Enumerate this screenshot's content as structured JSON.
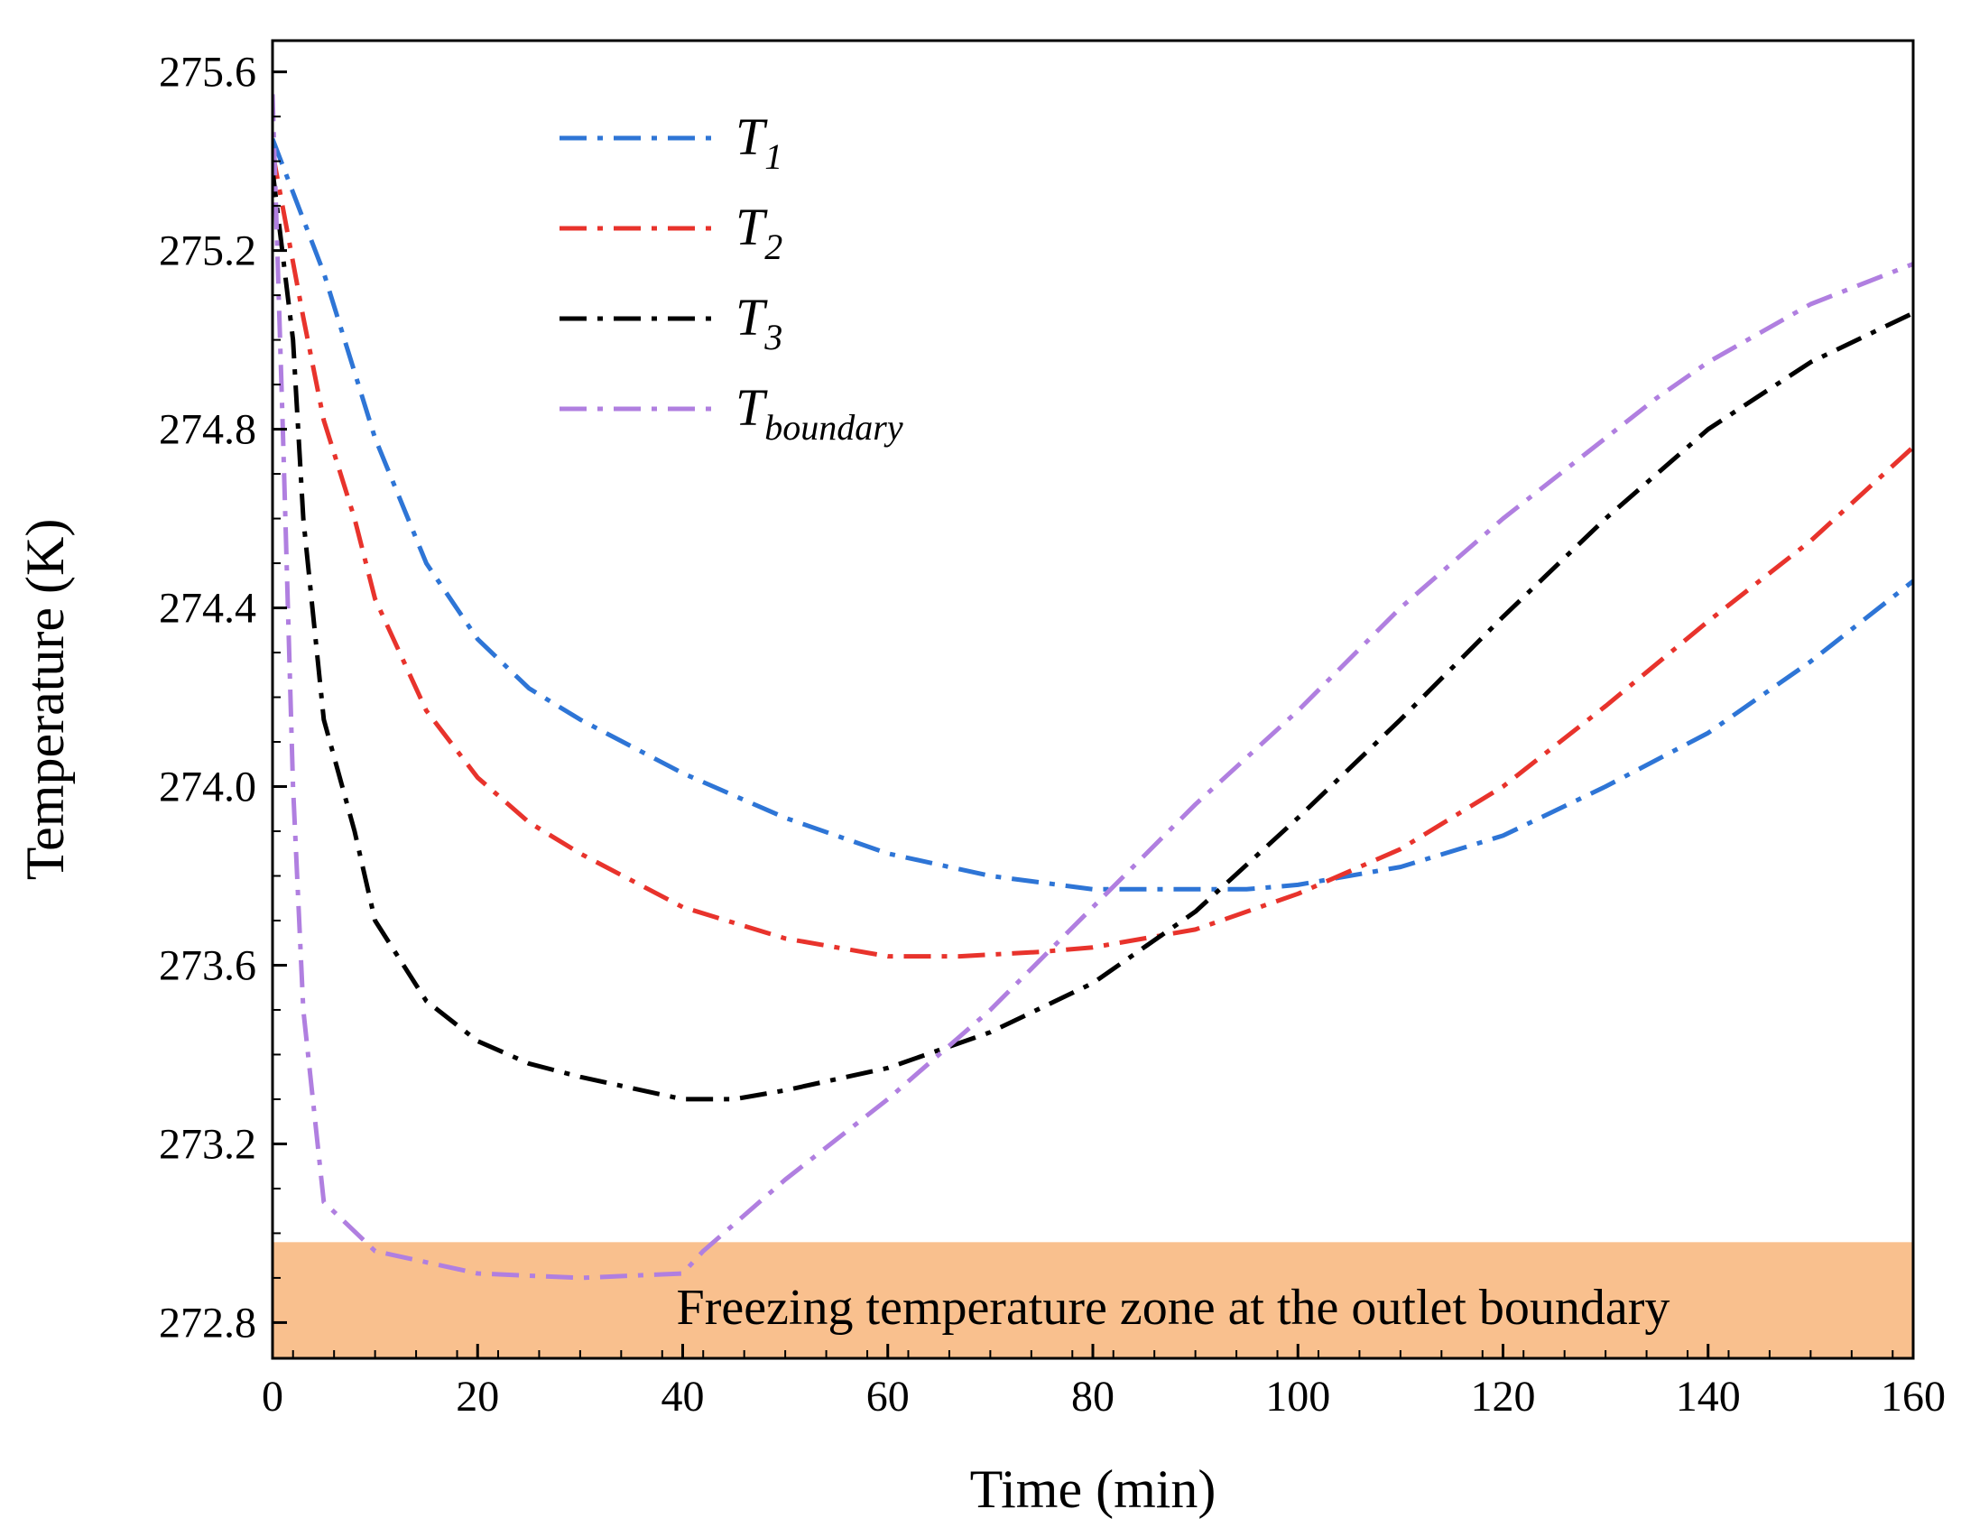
{
  "chart_data": {
    "type": "line",
    "xlabel": "Time (min)",
    "ylabel": "Temperature (K)",
    "xlim": [
      0,
      160
    ],
    "ylim": [
      272.72,
      275.67
    ],
    "xticks": [
      0,
      20,
      40,
      60,
      80,
      100,
      120,
      140,
      160
    ],
    "yticks": [
      272.8,
      273.2,
      273.6,
      274.0,
      274.4,
      274.8,
      275.2,
      275.6
    ],
    "xtick_labels": [
      "0",
      "20",
      "40",
      "60",
      "80",
      "100",
      "120",
      "140",
      "160"
    ],
    "ytick_labels": [
      "272.8",
      "273.2",
      "273.6",
      "274.0",
      "274.4",
      "274.8",
      "275.2",
      "275.6"
    ],
    "legend_position": "top-center",
    "shaded_region": {
      "y_from": 272.72,
      "y_to": 272.98,
      "color": "#F9C08E",
      "label": "Freezing temperature zone at the outlet boundary"
    },
    "series": [
      {
        "name": "T1",
        "label_main": "T",
        "label_sub": "1",
        "color": "#2E75D6",
        "x": [
          0,
          5,
          10,
          15,
          20,
          25,
          30,
          40,
          50,
          60,
          70,
          80,
          90,
          95,
          100,
          110,
          120,
          130,
          140,
          150,
          160
        ],
        "y": [
          275.45,
          275.15,
          274.78,
          274.5,
          274.33,
          274.22,
          274.15,
          274.03,
          273.93,
          273.85,
          273.8,
          273.77,
          273.77,
          273.77,
          273.78,
          273.82,
          273.89,
          274.0,
          274.12,
          274.28,
          274.46
        ]
      },
      {
        "name": "T2",
        "label_main": "T",
        "label_sub": "2",
        "color": "#E8332C",
        "x": [
          0,
          3,
          5,
          8,
          10,
          15,
          20,
          25,
          30,
          40,
          50,
          60,
          67,
          75,
          80,
          90,
          100,
          110,
          120,
          130,
          140,
          150,
          160
        ],
        "y": [
          275.42,
          275.05,
          274.82,
          274.6,
          274.42,
          274.17,
          274.02,
          273.92,
          273.85,
          273.73,
          273.66,
          273.62,
          273.62,
          273.63,
          273.64,
          273.68,
          273.76,
          273.86,
          274.0,
          274.18,
          274.37,
          274.55,
          274.76
        ]
      },
      {
        "name": "T3",
        "label_main": "T",
        "label_sub": "3",
        "color": "#000000",
        "x": [
          0,
          2,
          3,
          5,
          8,
          10,
          15,
          20,
          25,
          30,
          40,
          45,
          50,
          60,
          70,
          80,
          90,
          100,
          110,
          120,
          130,
          140,
          150,
          160
        ],
        "y": [
          275.38,
          275.0,
          274.6,
          274.15,
          273.9,
          273.7,
          273.52,
          273.43,
          273.38,
          273.35,
          273.3,
          273.3,
          273.32,
          273.37,
          273.45,
          273.56,
          273.72,
          273.93,
          274.15,
          274.38,
          274.6,
          274.8,
          274.95,
          275.06
        ]
      },
      {
        "name": "Tboundary",
        "label_main": "T",
        "label_sub": "boundary",
        "color": "#B07FE0",
        "x": [
          0,
          1,
          2,
          3,
          5,
          10,
          20,
          30,
          40,
          42,
          45,
          50,
          60,
          70,
          80,
          90,
          100,
          110,
          120,
          130,
          135,
          140,
          150,
          160
        ],
        "y": [
          275.55,
          274.8,
          274.0,
          273.5,
          273.07,
          272.96,
          272.91,
          272.9,
          272.91,
          272.96,
          273.02,
          273.12,
          273.3,
          273.5,
          273.73,
          273.96,
          274.17,
          274.4,
          274.6,
          274.78,
          274.87,
          274.95,
          275.08,
          275.17
        ]
      }
    ]
  }
}
